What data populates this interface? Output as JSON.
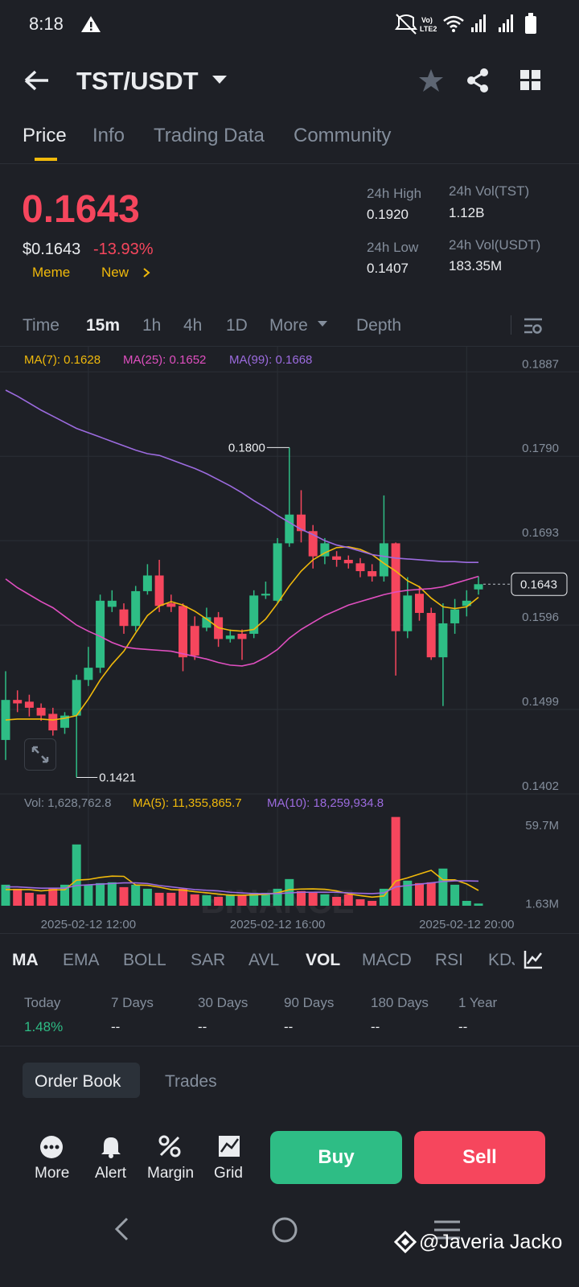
{
  "status_bar": {
    "time": "8:18"
  },
  "header": {
    "pair": "TST/USDT"
  },
  "tabs": [
    "Price",
    "Info",
    "Trading Data",
    "Community"
  ],
  "price": {
    "last": "0.1643",
    "usd": "$0.1643",
    "change": "-13.93%",
    "tags": [
      "Meme",
      "New"
    ]
  },
  "stats": [
    {
      "label": "24h High",
      "value": "0.1920"
    },
    {
      "label": "24h Vol(TST)",
      "value": "1.12B"
    },
    {
      "label": "24h Low",
      "value": "0.1407"
    },
    {
      "label": "24h Vol(USDT)",
      "value": "183.35M"
    }
  ],
  "intervals": [
    "Time",
    "15m",
    "1h",
    "4h",
    "1D",
    "More",
    "Depth"
  ],
  "chart_data": {
    "type": "candlestick",
    "watermark": "BINANCE",
    "categories": [
      null,
      null,
      null,
      null,
      null,
      null,
      null,
      "2025-02-12 12:00",
      null,
      null,
      null,
      null,
      null,
      null,
      null,
      null,
      null,
      null,
      null,
      null,
      null,
      null,
      null,
      "2025-02-12 16:00",
      null,
      null,
      null,
      null,
      null,
      null,
      null,
      null,
      null,
      null,
      null,
      null,
      null,
      null,
      null,
      "2025-02-12 20:00",
      null
    ],
    "open": [
      0.1464,
      0.151,
      0.1508,
      0.1501,
      0.1494,
      0.1478,
      0.1492,
      0.1533,
      0.1547,
      0.1617,
      0.1614,
      0.1595,
      0.1635,
      0.1653,
      0.1621,
      0.1618,
      0.1595,
      0.1593,
      0.1605,
      0.158,
      0.1586,
      0.1586,
      0.163,
      0.1624,
      0.169,
      0.1723,
      0.1704,
      0.1675,
      0.1675,
      0.1671,
      0.1667,
      0.1658,
      0.1652,
      0.169,
      0.1589,
      0.1632,
      0.161,
      0.1559,
      0.1598,
      0.1618,
      0.1637
    ],
    "high": [
      0.1543,
      0.1521,
      0.1516,
      0.1506,
      0.1501,
      0.1496,
      0.1539,
      0.1571,
      0.1631,
      0.1636,
      0.1621,
      0.1641,
      0.1666,
      0.1671,
      0.1631,
      0.1621,
      0.1606,
      0.1616,
      0.1611,
      0.1591,
      0.1591,
      0.1636,
      0.1646,
      0.1696,
      0.18,
      0.1751,
      0.1711,
      0.1696,
      0.1681,
      0.1676,
      0.1673,
      0.1666,
      0.1745,
      0.1691,
      0.1651,
      0.1641,
      0.1616,
      0.1621,
      0.1626,
      0.1636,
      0.1652
    ],
    "low": [
      0.1441,
      0.1496,
      0.1491,
      0.1486,
      0.1469,
      0.1471,
      0.1421,
      0.1526,
      0.1541,
      0.1611,
      0.1586,
      0.1589,
      0.1631,
      0.1611,
      0.1611,
      0.1543,
      0.1556,
      0.1589,
      0.1571,
      0.1576,
      0.1556,
      0.1581,
      0.1626,
      0.1621,
      0.1686,
      0.1691,
      0.1661,
      0.1666,
      0.1663,
      0.1661,
      0.1651,
      0.1646,
      0.1646,
      0.1538,
      0.1581,
      0.1601,
      0.1556,
      0.1503,
      0.1586,
      0.1606,
      0.1631
    ],
    "close": [
      0.151,
      0.1506,
      0.1501,
      0.1492,
      0.1475,
      0.1492,
      0.1533,
      0.1547,
      0.1624,
      0.1624,
      0.1595,
      0.1635,
      0.1653,
      0.1618,
      0.1617,
      0.1559,
      0.1561,
      0.1605,
      0.158,
      0.1584,
      0.158,
      0.163,
      0.1632,
      0.169,
      0.1723,
      0.1704,
      0.1675,
      0.169,
      0.1671,
      0.1667,
      0.1658,
      0.1652,
      0.169,
      0.1589,
      0.163,
      0.161,
      0.1559,
      0.1598,
      0.1614,
      0.1624,
      0.1643
    ],
    "up_color": "#2ebd85",
    "down_color": "#f6465d",
    "ylim": [
      0.1402,
      0.1915
    ],
    "yticks": [
      0.1887,
      {
        "value": 0.179,
        "label": "0.1790"
      },
      0.1693,
      0.1596,
      0.1499,
      0.1402
    ],
    "grid": true,
    "ma_series": [
      {
        "name": "MA(7): 0.1628",
        "color": "#f0b90b",
        "values": [
          0.1487,
          0.1488,
          0.1488,
          0.1488,
          0.1487,
          0.1489,
          0.1492,
          0.1511,
          0.1533,
          0.1551,
          0.1566,
          0.1587,
          0.1607,
          0.1618,
          0.1623,
          0.1619,
          0.1612,
          0.1603,
          0.1593,
          0.159,
          0.1589,
          0.1591,
          0.1603,
          0.1621,
          0.1641,
          0.1658,
          0.1671,
          0.1679,
          0.1685,
          0.1686,
          0.1683,
          0.1677,
          0.1667,
          0.1658,
          0.1647,
          0.164,
          0.1627,
          0.1617,
          0.1615,
          0.1617,
          0.1628
        ]
      },
      {
        "name": "MA(25): 0.1652",
        "color": "#e04fc0",
        "values": [
          0.1649,
          0.1639,
          0.1631,
          0.1623,
          0.1616,
          0.1606,
          0.1596,
          0.1589,
          0.1583,
          0.1576,
          0.1571,
          0.1569,
          0.1568,
          0.1567,
          0.1566,
          0.1563,
          0.156,
          0.1557,
          0.1553,
          0.155,
          0.1549,
          0.1552,
          0.1559,
          0.1568,
          0.1581,
          0.1591,
          0.1599,
          0.1607,
          0.1613,
          0.1619,
          0.1623,
          0.1627,
          0.1631,
          0.1634,
          0.1636,
          0.1637,
          0.1638,
          0.164,
          0.1644,
          0.1648,
          0.1652
        ]
      },
      {
        "name": "MA(99): 0.1668",
        "color": "#9c6bdf",
        "values": [
          0.1866,
          0.1859,
          0.1851,
          0.1843,
          0.1836,
          0.1829,
          0.1822,
          0.1817,
          0.1812,
          0.1807,
          0.1802,
          0.1797,
          0.1793,
          0.1791,
          0.1786,
          0.1781,
          0.1776,
          0.177,
          0.1763,
          0.1756,
          0.1748,
          0.1739,
          0.1731,
          0.1722,
          0.1714,
          0.1706,
          0.17,
          0.1693,
          0.1688,
          0.1685,
          0.1681,
          0.1677,
          0.1675,
          0.1673,
          0.1672,
          0.1671,
          0.167,
          0.1669,
          0.1669,
          0.1668,
          0.1668
        ]
      }
    ],
    "annotations": {
      "high": "0.1800",
      "low": "0.1421",
      "last": "0.1643"
    },
    "volume": {
      "label": "Vol: 1,628,762.8",
      "values": [
        15600000,
        12600000,
        9600000,
        8400000,
        12600000,
        15600000,
        45500000,
        15600000,
        16800000,
        17400000,
        13800000,
        15600000,
        12600000,
        9600000,
        9600000,
        12600000,
        8400000,
        7800000,
        6600000,
        8400000,
        7800000,
        9600000,
        9600000,
        12600000,
        19800000,
        10800000,
        9600000,
        8400000,
        6600000,
        8400000,
        4800000,
        3600000,
        12600000,
        65900000,
        18600000,
        16800000,
        17400000,
        27600000,
        15600000,
        3600000,
        1628762.8
      ],
      "ylim": [
        0,
        66300000
      ],
      "yticks": [
        {
          "value": 1630000,
          "label": "1.63M"
        },
        {
          "value": 59700000,
          "label": "59.7M"
        }
      ],
      "series": [
        {
          "name": "MA(5): 11,355,865.7",
          "color": "#f0b90b",
          "values": [
            12000000,
            12000000,
            12000000,
            11000000,
            11800000,
            11800000,
            19000000,
            19500000,
            21000000,
            22000000,
            21800000,
            15400000,
            15200000,
            13800000,
            12000000,
            11600000,
            10400000,
            9600000,
            8600000,
            7800000,
            7800000,
            8100000,
            8400000,
            9600000,
            11900000,
            12400000,
            12500000,
            12200000,
            11000000,
            8800000,
            7500000,
            6400000,
            7200000,
            18300000,
            20700000,
            23500000,
            26300000,
            19200000,
            19200000,
            16200000,
            11355865.7
          ]
        },
        {
          "name": "MA(10): 18,259,934.8",
          "color": "#9c6bdf",
          "values": [
            14000000,
            14000000,
            13500000,
            13000000,
            13000000,
            13000000,
            15000000,
            15500000,
            16000000,
            16500000,
            17000000,
            17000000,
            16500000,
            15000000,
            14000000,
            13000000,
            12000000,
            11500000,
            11000000,
            10000000,
            9500000,
            9000000,
            9000000,
            9000000,
            9500000,
            10000000,
            10000000,
            10000000,
            10000000,
            9500000,
            9200000,
            9000000,
            9500000,
            14000000,
            15000000,
            16000000,
            17000000,
            18000000,
            18500000,
            18500000,
            18259934.8
          ]
        }
      ]
    }
  },
  "indicators": [
    "MA",
    "EMA",
    "BOLL",
    "SAR",
    "AVL",
    "VOL",
    "MACD",
    "RSI",
    "KDJ"
  ],
  "performance": [
    {
      "label": "Today",
      "value": "1.48%"
    },
    {
      "label": "7 Days",
      "value": "--"
    },
    {
      "label": "30 Days",
      "value": "--"
    },
    {
      "label": "90 Days",
      "value": "--"
    },
    {
      "label": "180 Days",
      "value": "--"
    },
    {
      "label": "1 Year",
      "value": "--"
    }
  ],
  "book_tabs": [
    "Order Book",
    "Trades"
  ],
  "actions": [
    "More",
    "Alert",
    "Margin",
    "Grid"
  ],
  "buttons": [
    "Buy",
    "Sell"
  ],
  "watermark": "@Javeria Jacko"
}
